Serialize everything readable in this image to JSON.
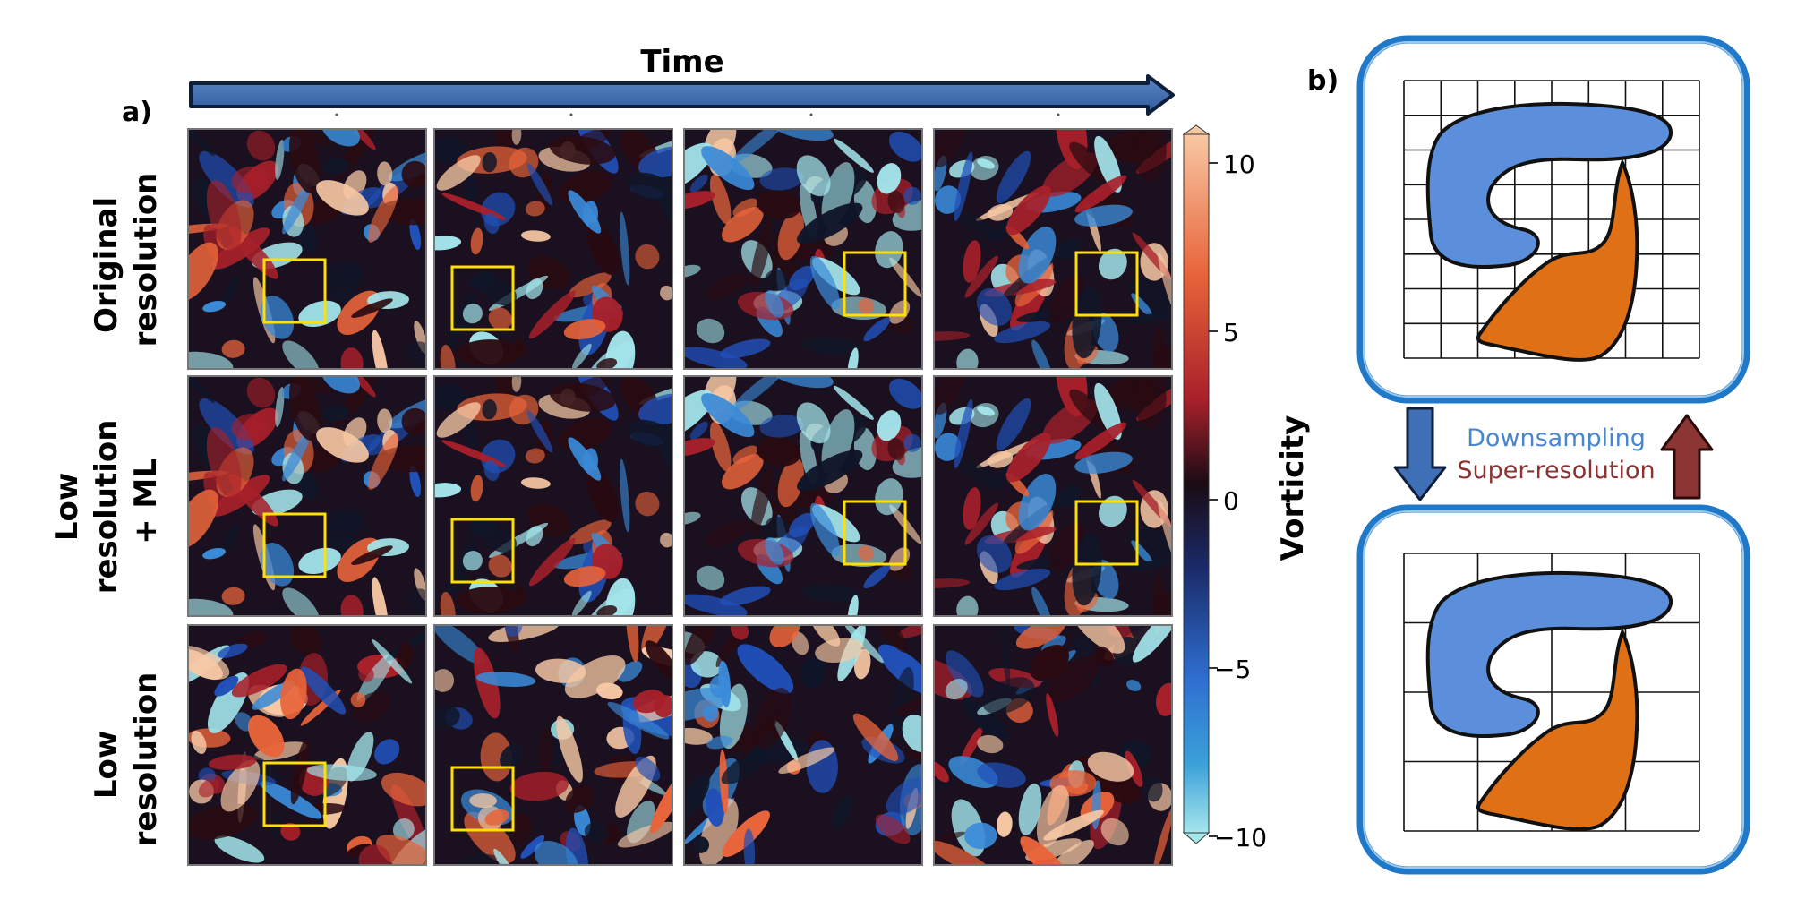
{
  "panel_a": {
    "label": "a)",
    "time_label": "Time",
    "row_labels": [
      [
        "Original",
        "resolution"
      ],
      [
        "Low",
        "resolution",
        "+ ML"
      ],
      [
        "Low",
        "resolution"
      ]
    ],
    "colorbar": {
      "title": "Vorticity",
      "ticks": [
        "10",
        "5",
        "0",
        "−5",
        "−10"
      ],
      "colors": [
        "#f7c8a4",
        "#e8643a",
        "#a8202a",
        "#2a0a10",
        "#101628",
        "#2050b8",
        "#3a8ad8",
        "#a4e6ec"
      ]
    }
  },
  "panel_b": {
    "label": "b)",
    "downsampling": "Downsampling",
    "superresolution": "Super-resolution",
    "colors": {
      "blue_shape": "#5b8fdb",
      "orange_shape": "#e07015",
      "frame": "#1f78c8",
      "down_arrow": "#3f6fb6",
      "up_arrow": "#8b3535",
      "downsampling_text": "#4a86d0",
      "superresolution_text": "#8b3232"
    }
  }
}
